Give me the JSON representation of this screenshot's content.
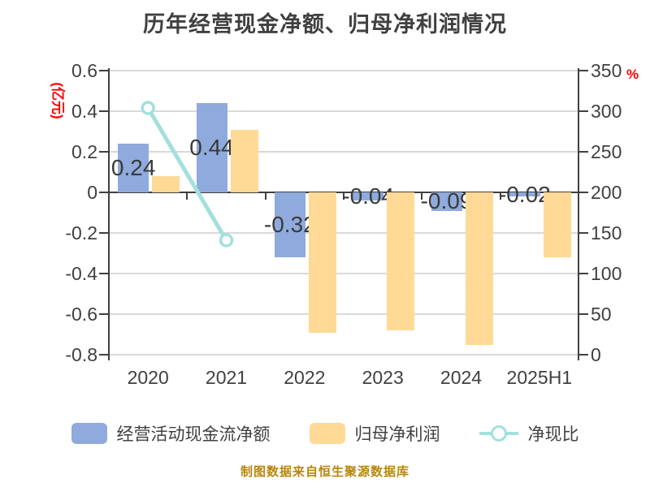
{
  "title": "历年经营现金净额、归母净利润情况",
  "footer_note": "制图数据来自恒生聚源数据库",
  "colors": {
    "bar_operating_cash": "#8FAADC",
    "bar_net_profit": "#FFD996",
    "ratio_line": "#A2E0DD",
    "axis_text": "#404040",
    "grid": "#D9D9D9",
    "zero_line": "#404040",
    "unit_accent": "#FF0000",
    "bar_label_text": "#3a3a3a",
    "footer_text": "#B8860B"
  },
  "axes": {
    "left_unit": "(亿元)",
    "right_unit": "%"
  },
  "legend": [
    {
      "label": "经营活动现金流净额",
      "type": "bar",
      "color": "#8FAADC"
    },
    {
      "label": "归母净利润",
      "type": "bar",
      "color": "#FFD996"
    },
    {
      "label": "净现比",
      "type": "line",
      "color": "#A2E0DD"
    }
  ],
  "chart_data": {
    "type": "bar",
    "title": "历年经营现金净额、归母净利润情况",
    "categories": [
      "2020",
      "2021",
      "2022",
      "2023",
      "2024",
      "2025H1"
    ],
    "series": [
      {
        "name": "经营活动现金流净额",
        "type": "bar",
        "axis": "left",
        "color": "#8FAADC",
        "values": [
          0.24,
          0.44,
          -0.32,
          -0.04,
          -0.09,
          -0.02
        ],
        "labels": [
          "0.24",
          "0.44",
          "-0.32",
          "-0.04",
          "-0.09",
          "-0.02"
        ]
      },
      {
        "name": "归母净利润",
        "type": "bar",
        "axis": "left",
        "color": "#FFD996",
        "values": [
          0.08,
          0.31,
          -0.69,
          -0.68,
          -0.75,
          -0.32
        ],
        "labels": []
      },
      {
        "name": "净现比",
        "type": "line",
        "axis": "right",
        "color": "#A2E0DD",
        "values": [
          304,
          141,
          null,
          null,
          null,
          null
        ]
      }
    ],
    "left_axis": {
      "label": "(亿元)",
      "min": -0.8,
      "max": 0.6,
      "tick_step": 0.2,
      "ticks": [
        0.6,
        0.4,
        0.2,
        0,
        -0.2,
        -0.4,
        -0.6,
        -0.8
      ],
      "tick_labels": [
        "0.6",
        "0.4",
        "0.2",
        "0",
        "-0.2",
        "-0.4",
        "-0.6",
        "-0.8"
      ]
    },
    "right_axis": {
      "label": "%",
      "min": 0,
      "max": 350,
      "tick_step": 50,
      "ticks": [
        350,
        300,
        250,
        200,
        150,
        100,
        50,
        0
      ],
      "tick_labels": [
        "350",
        "300",
        "250",
        "200",
        "150",
        "100",
        "50",
        "0"
      ]
    },
    "grid": true,
    "legend_position": "bottom"
  }
}
